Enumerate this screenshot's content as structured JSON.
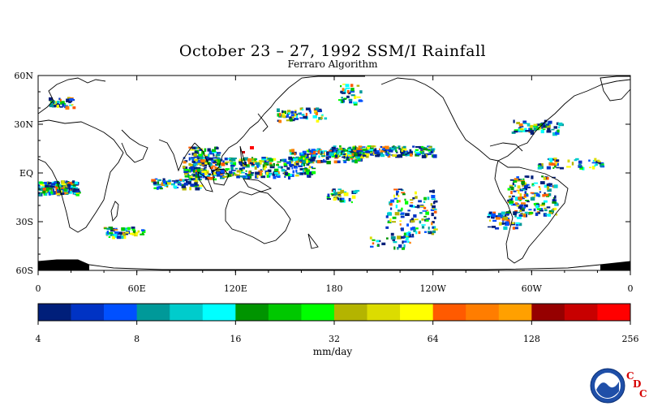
{
  "title": "October 23 – 27, 1992 SSM/I Rainfall",
  "subtitle": "Ferraro Algorithm",
  "map": {
    "lat_labels": [
      "60N",
      "30N",
      "EQ",
      "30S",
      "60S"
    ],
    "lat_values": [
      60,
      30,
      0,
      -30,
      -60
    ],
    "lon_labels": [
      "0",
      "60E",
      "120E",
      "180",
      "120W",
      "60W",
      "0"
    ],
    "lon_values": [
      0,
      60,
      120,
      180,
      240,
      300,
      360
    ],
    "lat_range": [
      -60,
      60
    ],
    "lon_range": [
      0,
      360
    ]
  },
  "colorbar": {
    "units": "mm/day",
    "tick_labels": [
      "4",
      "8",
      "16",
      "32",
      "64",
      "128",
      "256"
    ],
    "colors": [
      "#001f7a",
      "#0033c4",
      "#0050ff",
      "#009999",
      "#00cccc",
      "#00ffff",
      "#009400",
      "#00c800",
      "#00ff00",
      "#b4b400",
      "#dcdc00",
      "#ffff00",
      "#ff5a00",
      "#ff7d00",
      "#ffa000",
      "#960000",
      "#c80000",
      "#ff0000"
    ]
  },
  "logo": {
    "name": "NOAA",
    "letters": [
      "C",
      "D",
      "C"
    ]
  }
}
